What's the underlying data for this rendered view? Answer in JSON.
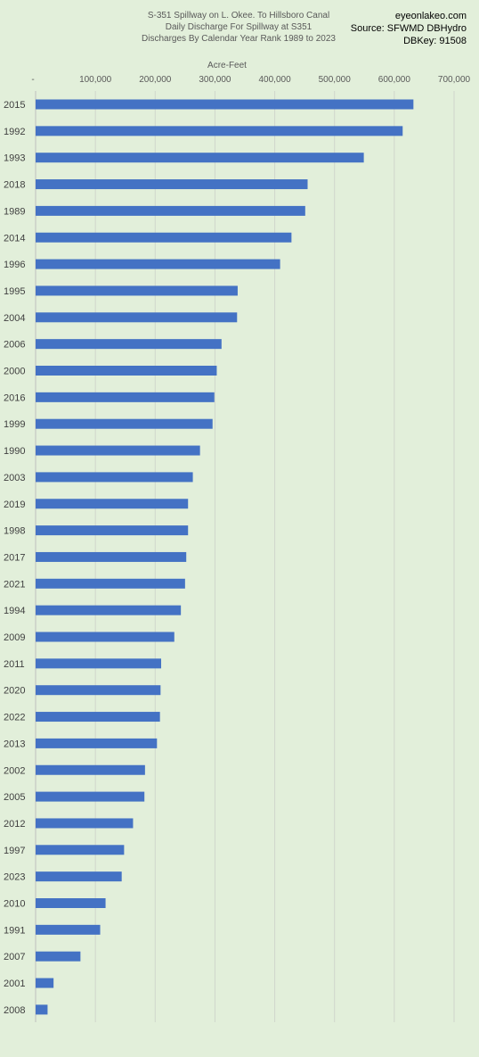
{
  "header": {
    "title_lines": [
      "S-351 Spillway on L. Okee. To Hillsboro Canal",
      "Daily Discharge For Spillway at S351",
      "Discharges By Calendar Year Rank 1989 to 2023"
    ],
    "source_lines": [
      "eyeonlakeo.com",
      "Source: SFWMD DBHydro",
      "DBKey: 91508"
    ]
  },
  "chart_data": {
    "type": "bar",
    "orientation": "horizontal",
    "title": "S-351 Spillway on L. Okee. To Hillsboro Canal\nDaily Discharge For Spillway at S351\nDischarges By Calendar Year Rank 1989 to 2023",
    "xlabel": "Acre-Feet",
    "ylabel": "",
    "xlim": [
      0,
      700000
    ],
    "x_ticks": [
      0,
      100000,
      200000,
      300000,
      400000,
      500000,
      600000,
      700000
    ],
    "x_tick_labels": [
      "-",
      "100,000",
      "200,000",
      "300,000",
      "400,000",
      "500,000",
      "600,000",
      "700,000"
    ],
    "x_axis_position": "top",
    "grid": true,
    "legend": "none",
    "bar_color": "#4472c4",
    "categories": [
      "2015",
      "1992",
      "1993",
      "2018",
      "1989",
      "2014",
      "1996",
      "1995",
      "2004",
      "2006",
      "2000",
      "2016",
      "1999",
      "1990",
      "2003",
      "2019",
      "1998",
      "2017",
      "2021",
      "1994",
      "2009",
      "2011",
      "2020",
      "2022",
      "2013",
      "2002",
      "2005",
      "2012",
      "1997",
      "2023",
      "2010",
      "1991",
      "2007",
      "2001",
      "2008"
    ],
    "values": [
      632000,
      614000,
      549000,
      455000,
      451000,
      428000,
      409000,
      338000,
      337000,
      311000,
      303000,
      299000,
      296000,
      275000,
      263000,
      255000,
      255000,
      252000,
      250000,
      243000,
      232000,
      210000,
      209000,
      208000,
      203000,
      183000,
      182000,
      163000,
      148000,
      144000,
      117000,
      108000,
      75000,
      30000,
      20000
    ]
  }
}
